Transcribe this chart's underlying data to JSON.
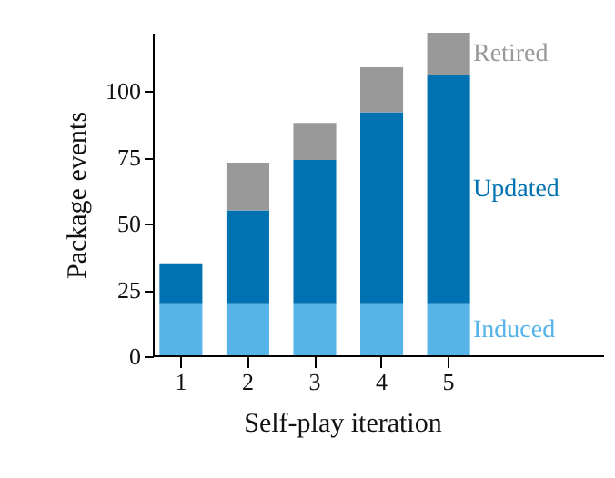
{
  "chart_data": {
    "type": "bar",
    "stacked": true,
    "xlabel": "Self-play iteration",
    "ylabel": "Package events",
    "categories": [
      "1",
      "2",
      "3",
      "4",
      "5"
    ],
    "series": [
      {
        "name": "Induced",
        "color": "#56b4e9",
        "values": [
          20,
          20,
          20,
          20,
          20
        ]
      },
      {
        "name": "Updated",
        "color": "#0072b2",
        "values": [
          15,
          35,
          54,
          72,
          86
        ]
      },
      {
        "name": "Retired",
        "color": "#999999",
        "values": [
          null,
          18,
          14,
          17,
          16
        ]
      }
    ],
    "ylim": [
      0,
      122
    ],
    "yticks": [
      0,
      25,
      50,
      75,
      100
    ],
    "grid": false
  }
}
